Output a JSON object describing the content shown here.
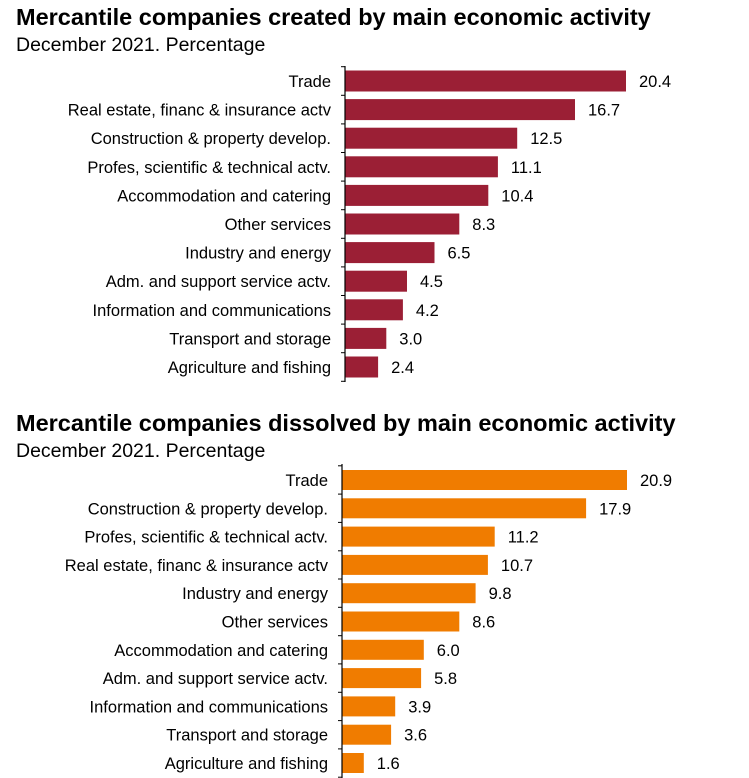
{
  "chart_data": [
    {
      "type": "bar",
      "orientation": "horizontal",
      "title": "Mercantile companies created by main economic activity",
      "subtitle": "December 2021. Percentage",
      "color": "#9B1F35",
      "categories": [
        "Trade",
        "Real estate, financ & insurance actv",
        "Construction & property develop.",
        "Profes, scientific & technical actv.",
        "Accommodation and catering",
        "Other services",
        "Industry and energy",
        "Adm. and support service actv.",
        "Information and communications",
        "Transport and storage",
        "Agriculture and fishing"
      ],
      "values": [
        20.4,
        16.7,
        12.5,
        11.1,
        10.4,
        8.3,
        6.5,
        4.5,
        4.2,
        3.0,
        2.4
      ],
      "value_labels": [
        "20.4",
        "16.7",
        "12.5",
        "11.1",
        "10.4",
        "8.3",
        "6.5",
        "4.5",
        "4.2",
        "3.0",
        "2.4"
      ],
      "xlim": [
        0,
        20.4
      ]
    },
    {
      "type": "bar",
      "orientation": "horizontal",
      "title": "Mercantile companies dissolved by main economic activity",
      "subtitle": "December 2021. Percentage",
      "color": "#F07C00",
      "categories": [
        "Trade",
        "Construction & property develop.",
        "Profes, scientific & technical actv.",
        "Real estate, financ & insurance actv",
        "Industry and energy",
        "Other services",
        "Accommodation and catering",
        "Adm. and support service actv.",
        "Information and communications",
        "Transport and storage",
        "Agriculture and fishing"
      ],
      "values": [
        20.9,
        17.9,
        11.2,
        10.7,
        9.8,
        8.6,
        6.0,
        5.8,
        3.9,
        3.6,
        1.6
      ],
      "value_labels": [
        "20.9",
        "17.9",
        "11.2",
        "10.7",
        "9.8",
        "8.6",
        "6.0",
        "5.8",
        "3.9",
        "3.6",
        "1.6"
      ],
      "xlim": [
        0,
        20.9
      ]
    }
  ]
}
